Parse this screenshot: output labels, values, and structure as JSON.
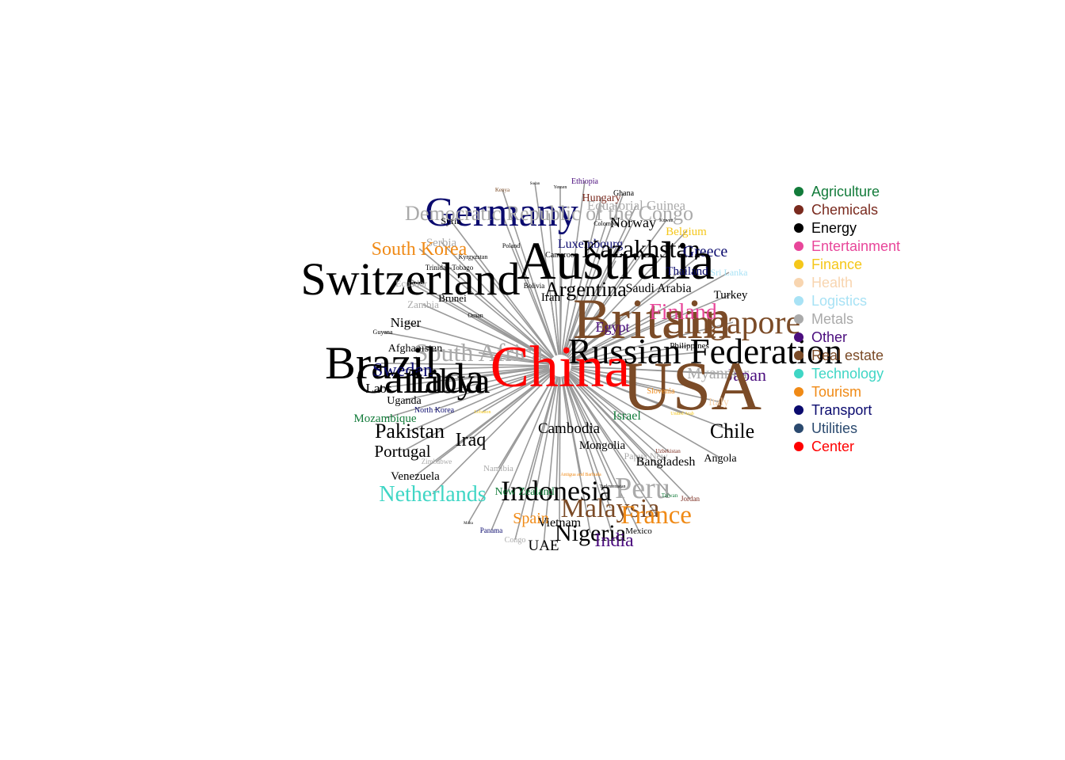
{
  "colors": {
    "Agriculture": "#127B3A",
    "Chemicals": "#7A2A1E",
    "Energy": "#000000",
    "Entertainment": "#E8469A",
    "Finance": "#F5C71A",
    "Health": "#F8D5B0",
    "Logistics": "#A8E2F5",
    "Metals": "#AAAAAA",
    "Other": "#4B0E7E",
    "Real estate": "#7B4B27",
    "Technology": "#3FD6C5",
    "Tourism": "#F08A16",
    "Transport": "#0A0A6E",
    "Utilities": "#2B4A6F",
    "Center": "#FF0000",
    "edge": "#9A9A9A"
  },
  "legend": [
    {
      "label": "Agriculture",
      "color": "#127B3A"
    },
    {
      "label": "Chemicals",
      "color": "#7A2A1E"
    },
    {
      "label": "Energy",
      "color": "#000000"
    },
    {
      "label": "Entertainment",
      "color": "#E8469A"
    },
    {
      "label": "Finance",
      "color": "#F5C71A"
    },
    {
      "label": "Health",
      "color": "#F8D5B0"
    },
    {
      "label": "Logistics",
      "color": "#A8E2F5"
    },
    {
      "label": "Metals",
      "color": "#AAAAAA"
    },
    {
      "label": "Other",
      "color": "#4B0E7E"
    },
    {
      "label": "Real estate",
      "color": "#7B4B27"
    },
    {
      "label": "Technology",
      "color": "#3FD6C5"
    },
    {
      "label": "Tourism",
      "color": "#F08A16"
    },
    {
      "label": "Transport",
      "color": "#0A0A6E"
    },
    {
      "label": "Utilities",
      "color": "#2B4A6F"
    },
    {
      "label": "Center",
      "color": "#FF0000"
    }
  ],
  "center": {
    "label": "China",
    "category": "Center"
  },
  "nodes": [
    {
      "label": "Germany",
      "category": "Transport"
    },
    {
      "label": "Democratic Republic of the Congo",
      "category": "Metals"
    },
    {
      "label": "Equatorial Guinea",
      "category": "Metals"
    },
    {
      "label": "Ethiopia",
      "category": "Other"
    },
    {
      "label": "Kenya",
      "category": "Real estate"
    },
    {
      "label": "Sudan",
      "category": "Energy"
    },
    {
      "label": "Yemen",
      "category": "Energy"
    },
    {
      "label": "Hungary",
      "category": "Chemicals"
    },
    {
      "label": "Ghana",
      "category": "Energy"
    },
    {
      "label": "Syria",
      "category": "Energy"
    },
    {
      "label": "Colombia",
      "category": "Energy"
    },
    {
      "label": "Kuwait",
      "category": "Energy"
    },
    {
      "label": "Norway",
      "category": "Energy"
    },
    {
      "label": "Belgium",
      "category": "Finance"
    },
    {
      "label": "Serbia",
      "category": "Metals"
    },
    {
      "label": "South Korea",
      "category": "Tourism"
    },
    {
      "label": "Poland",
      "category": "Energy"
    },
    {
      "label": "Luxembourg",
      "category": "Transport"
    },
    {
      "label": "Kazakhstan",
      "category": "Energy"
    },
    {
      "label": "Greece",
      "category": "Transport"
    },
    {
      "label": "Kyrgyzstan",
      "category": "Energy"
    },
    {
      "label": "Cameroon",
      "category": "Energy"
    },
    {
      "label": "Australia",
      "category": "Energy"
    },
    {
      "label": "Trinidad-Tobago",
      "category": "Energy"
    },
    {
      "label": "Thailand",
      "category": "Transport"
    },
    {
      "label": "Sri Lanka",
      "category": "Logistics"
    },
    {
      "label": "Switzerland",
      "category": "Energy"
    },
    {
      "label": "Ecuador",
      "category": "Metals"
    },
    {
      "label": "Argentina",
      "category": "Energy"
    },
    {
      "label": "Saudi Arabia",
      "category": "Energy"
    },
    {
      "label": "Bolivia",
      "category": "Energy"
    },
    {
      "label": "Iran",
      "category": "Energy"
    },
    {
      "label": "Turkey",
      "category": "Energy"
    },
    {
      "label": "Brunei",
      "category": "Energy"
    },
    {
      "label": "Zambia",
      "category": "Metals"
    },
    {
      "label": "Britain",
      "category": "Real estate"
    },
    {
      "label": "Finland",
      "category": "Entertainment"
    },
    {
      "label": "Singapore",
      "category": "Real estate"
    },
    {
      "label": "Oman",
      "category": "Energy"
    },
    {
      "label": "Niger",
      "category": "Energy"
    },
    {
      "label": "Guyana",
      "category": "Energy"
    },
    {
      "label": "Egypt",
      "category": "Other"
    },
    {
      "label": "Russian Federation",
      "category": "Energy"
    },
    {
      "label": "Philippines",
      "category": "Energy"
    },
    {
      "label": "Afghanistan",
      "category": "Energy"
    },
    {
      "label": "South Africa",
      "category": "Metals"
    },
    {
      "label": "Brazil",
      "category": "Energy"
    },
    {
      "label": "Sweden",
      "category": "Transport"
    },
    {
      "label": "Canada",
      "category": "Energy"
    },
    {
      "label": "Laos",
      "category": "Energy"
    },
    {
      "label": "Libya",
      "category": "Energy"
    },
    {
      "label": "Myanmar",
      "category": "Metals"
    },
    {
      "label": "Japan",
      "category": "Other"
    },
    {
      "label": "USA",
      "category": "Real estate"
    },
    {
      "label": "Uganda",
      "category": "Energy"
    },
    {
      "label": "Slovenia",
      "category": "Tourism"
    },
    {
      "label": "Italy",
      "category": "Health"
    },
    {
      "label": "North Korea",
      "category": "Transport"
    },
    {
      "label": "Mozambique",
      "category": "Agriculture"
    },
    {
      "label": "Israel",
      "category": "Agriculture"
    },
    {
      "label": "Lebanon",
      "category": "Finance"
    },
    {
      "label": "United Arab",
      "category": "Finance"
    },
    {
      "label": "Pakistan",
      "category": "Energy"
    },
    {
      "label": "Cambodia",
      "category": "Energy"
    },
    {
      "label": "Chile",
      "category": "Energy"
    },
    {
      "label": "Iraq",
      "category": "Energy"
    },
    {
      "label": "Mongolia",
      "category": "Energy"
    },
    {
      "label": "Portugal",
      "category": "Energy"
    },
    {
      "label": "Papua New",
      "category": "Metals"
    },
    {
      "label": "Uzbekistan",
      "category": "Chemicals"
    },
    {
      "label": "Zimbabwe",
      "category": "Metals"
    },
    {
      "label": "Bangladesh",
      "category": "Energy"
    },
    {
      "label": "Angola",
      "category": "Energy"
    },
    {
      "label": "Namibia",
      "category": "Metals"
    },
    {
      "label": "Venezuela",
      "category": "Energy"
    },
    {
      "label": "Antigua and Barbuda",
      "category": "Tourism"
    },
    {
      "label": "Peru",
      "category": "Metals"
    },
    {
      "label": "Turkmenistan",
      "category": "Energy"
    },
    {
      "label": "Netherlands",
      "category": "Technology"
    },
    {
      "label": "Indonesia",
      "category": "Energy"
    },
    {
      "label": "New Zealand",
      "category": "Agriculture"
    },
    {
      "label": "Taiwan",
      "category": "Agriculture"
    },
    {
      "label": "Jordan",
      "category": "Chemicals"
    },
    {
      "label": "Malaysia",
      "category": "Real estate"
    },
    {
      "label": "France",
      "category": "Tourism"
    },
    {
      "label": "Spain",
      "category": "Tourism"
    },
    {
      "label": "Vietnam",
      "category": "Energy"
    },
    {
      "label": "Malta",
      "category": "Energy"
    },
    {
      "label": "Nigeria",
      "category": "Energy"
    },
    {
      "label": "Mexico",
      "category": "Energy"
    },
    {
      "label": "Panama",
      "category": "Transport"
    },
    {
      "label": "India",
      "category": "Other"
    },
    {
      "label": "Congo",
      "category": "Metals"
    },
    {
      "label": "UAE",
      "category": "Energy"
    }
  ]
}
